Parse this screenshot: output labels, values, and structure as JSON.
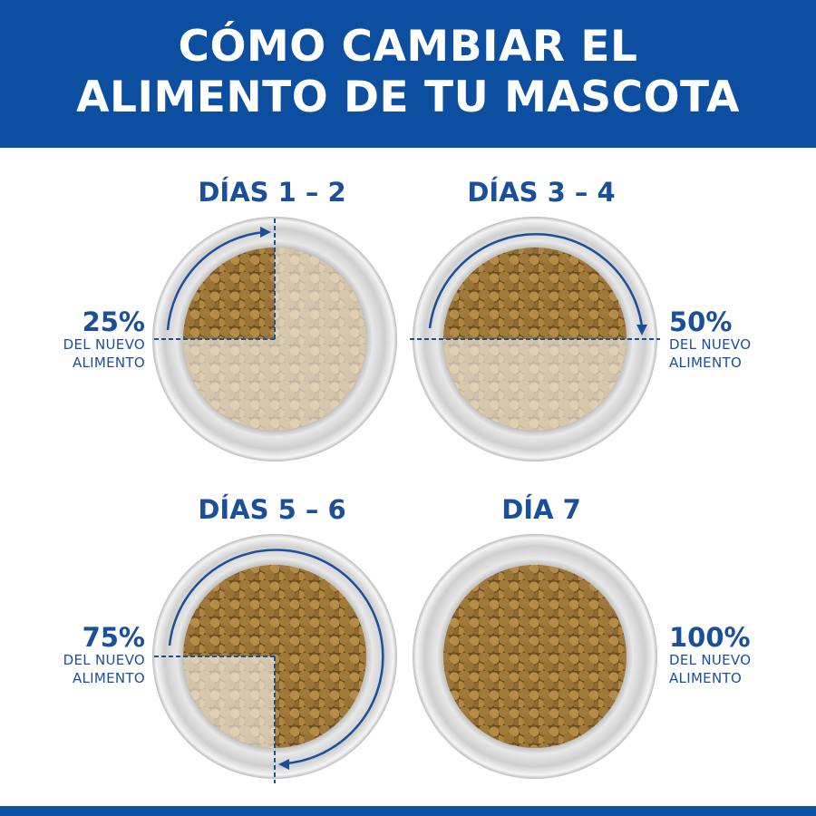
{
  "header": {
    "title_line1": "CÓMO CAMBIAR EL",
    "title_line2": "ALIMENTO DE TU MASCOTA"
  },
  "colors": {
    "brand_blue": "#0c4fa0",
    "text_blue": "#1a4f9c",
    "kibble": "#9a7436"
  },
  "steps": [
    {
      "title": "DÍAS 1 – 2",
      "percent": "25%",
      "desc1": "DEL NUEVO",
      "desc2": "ALIMENTO",
      "new_fraction": 0.25
    },
    {
      "title": "DÍAS 3 – 4",
      "percent": "50%",
      "desc1": "DEL NUEVO",
      "desc2": "ALIMENTO",
      "new_fraction": 0.5
    },
    {
      "title": "DÍAS 5 – 6",
      "percent": "75%",
      "desc1": "DEL NUEVO",
      "desc2": "ALIMENTO",
      "new_fraction": 0.75
    },
    {
      "title": "DÍA 7",
      "percent": "100%",
      "desc1": "DEL NUEVO",
      "desc2": "ALIMENTO",
      "new_fraction": 1
    }
  ]
}
